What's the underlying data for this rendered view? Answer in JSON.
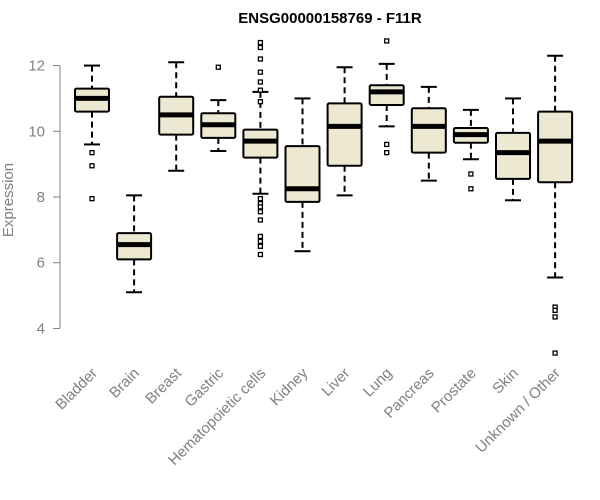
{
  "chart_data": {
    "type": "boxplot",
    "title": "ENSG00000158769 - F11R",
    "xlabel": "",
    "ylabel": "Expression",
    "ylim": [
      3.1,
      12.9
    ],
    "yticks": [
      4,
      6,
      8,
      10,
      12
    ],
    "box_fill": "#ede8d2",
    "categories": [
      "Bladder",
      "Brain",
      "Breast",
      "Gastric",
      "Hematopoietic cells",
      "Kidney",
      "Liver",
      "Lung",
      "Pancreas",
      "Prostate",
      "Skin",
      "Unknown / Other"
    ],
    "boxes": [
      {
        "name": "Bladder",
        "whisker_low": 9.6,
        "q1": 10.6,
        "median": 11.0,
        "q3": 11.3,
        "whisker_high": 12.0,
        "outliers": [
          9.35,
          8.95,
          7.95
        ]
      },
      {
        "name": "Brain",
        "whisker_low": 5.1,
        "q1": 6.1,
        "median": 6.55,
        "q3": 6.9,
        "whisker_high": 8.05,
        "outliers": []
      },
      {
        "name": "Breast",
        "whisker_low": 8.8,
        "q1": 9.9,
        "median": 10.5,
        "q3": 11.05,
        "whisker_high": 12.1,
        "outliers": []
      },
      {
        "name": "Gastric",
        "whisker_low": 9.4,
        "q1": 9.8,
        "median": 10.2,
        "q3": 10.55,
        "whisker_high": 10.95,
        "outliers": [
          11.95
        ]
      },
      {
        "name": "Hematopoietic cells",
        "whisker_low": 8.1,
        "q1": 9.2,
        "median": 9.7,
        "q3": 10.05,
        "whisker_high": 11.2,
        "outliers": [
          12.7,
          12.55,
          12.2,
          11.8,
          11.5,
          11.25,
          10.9,
          7.95,
          7.8,
          7.7,
          7.55,
          7.3,
          6.8,
          6.65,
          6.5,
          6.25
        ]
      },
      {
        "name": "Kidney",
        "whisker_low": 6.35,
        "q1": 7.85,
        "median": 8.25,
        "q3": 9.55,
        "whisker_high": 11.0,
        "outliers": []
      },
      {
        "name": "Liver",
        "whisker_low": 8.05,
        "q1": 8.95,
        "median": 10.15,
        "q3": 10.85,
        "whisker_high": 11.95,
        "outliers": []
      },
      {
        "name": "Lung",
        "whisker_low": 10.15,
        "q1": 10.8,
        "median": 11.2,
        "q3": 11.4,
        "whisker_high": 12.05,
        "outliers": [
          12.75,
          9.6,
          9.35
        ]
      },
      {
        "name": "Pancreas",
        "whisker_low": 8.5,
        "q1": 9.35,
        "median": 10.15,
        "q3": 10.7,
        "whisker_high": 11.35,
        "outliers": []
      },
      {
        "name": "Prostate",
        "whisker_low": 9.15,
        "q1": 9.65,
        "median": 9.9,
        "q3": 10.1,
        "whisker_high": 10.65,
        "outliers": [
          8.7,
          8.25
        ]
      },
      {
        "name": "Skin",
        "whisker_low": 7.9,
        "q1": 8.55,
        "median": 9.35,
        "q3": 9.95,
        "whisker_high": 11.0,
        "outliers": []
      },
      {
        "name": "Unknown / Other",
        "whisker_low": 5.55,
        "q1": 8.45,
        "median": 9.7,
        "q3": 10.6,
        "whisker_high": 12.3,
        "outliers": [
          4.65,
          4.55,
          4.35,
          3.25
        ]
      }
    ]
  }
}
